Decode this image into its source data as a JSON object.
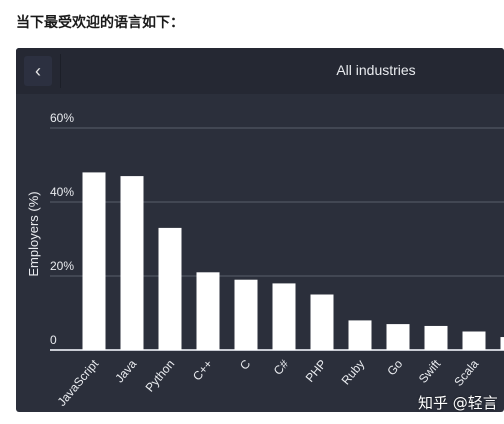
{
  "intro_text": "当下最受欢迎的语言如下：",
  "header": {
    "back_icon": "chevron-left-icon",
    "back_glyph": "‹",
    "title": "All industries"
  },
  "watermark": "知乎 @轻言",
  "colors": {
    "card_bg": "#2b2f3b",
    "bar": "#ffffff",
    "grid": "#5a5f6b",
    "text": "#e9ebef"
  },
  "chart_data": {
    "type": "bar",
    "ylabel": "Employers (%)",
    "xlabel": "",
    "ylim": [
      0,
      60
    ],
    "yticks": [
      0,
      20,
      40,
      60
    ],
    "ytick_labels": [
      "0",
      "20%",
      "40%",
      "60%"
    ],
    "grid": true,
    "categories": [
      "JavaScript",
      "Java",
      "Python",
      "C++",
      "C",
      "C#",
      "PHP",
      "Ruby",
      "Go",
      "Swift",
      "Scala",
      ""
    ],
    "values": [
      48,
      47,
      33,
      21,
      19,
      18,
      15,
      8,
      7,
      6.5,
      5,
      3.5
    ]
  }
}
